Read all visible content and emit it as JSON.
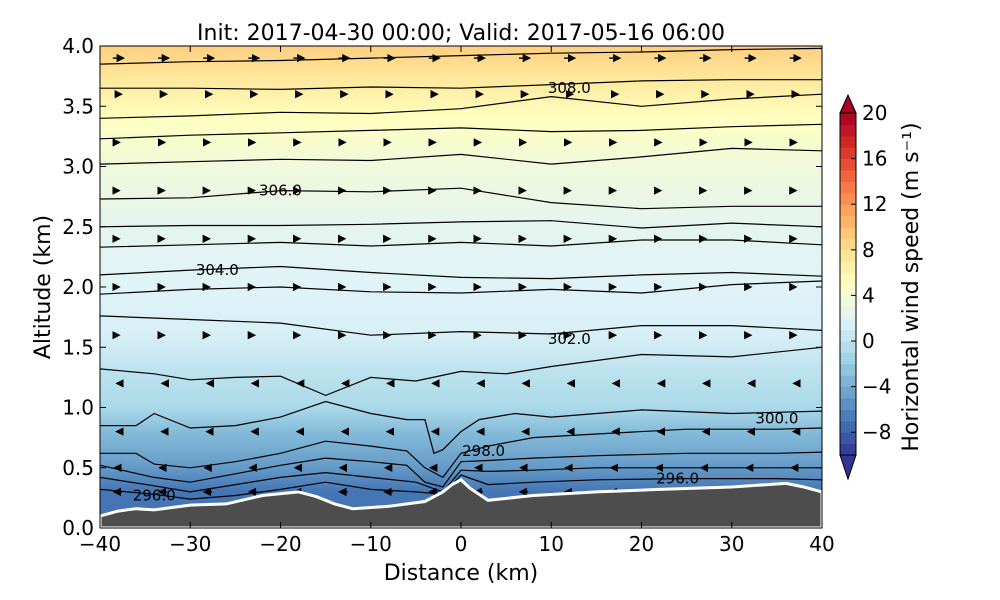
{
  "chart_data": {
    "type": "heatmap",
    "title": "Init: 2017-04-30 00:00; Valid: 2017-05-16 06:00",
    "xlabel": "Distance (km)",
    "ylabel": "Altitude (km)",
    "xlim": [
      -40,
      40
    ],
    "ylim": [
      0.0,
      4.0
    ],
    "x_ticks": [
      "−40",
      "−30",
      "−20",
      "−10",
      "0",
      "10",
      "20",
      "30",
      "40"
    ],
    "y_ticks": [
      "0.0",
      "0.5",
      "1.0",
      "1.5",
      "2.0",
      "2.5",
      "3.0",
      "3.5",
      "4.0"
    ],
    "x_tick_values": [
      -40,
      -30,
      -20,
      -10,
      0,
      10,
      20,
      30,
      40
    ],
    "y_tick_values": [
      0.0,
      0.5,
      1.0,
      1.5,
      2.0,
      2.5,
      3.0,
      3.5,
      4.0
    ],
    "colorbar": {
      "label": "Horizontal wind speed (m s⁻¹)",
      "range": [
        -10,
        20
      ],
      "tick_values": [
        -8,
        -4,
        0,
        4,
        8,
        12,
        16,
        20
      ],
      "tick_labels": [
        "−8",
        "−4",
        "0",
        "4",
        "8",
        "12",
        "16",
        "20"
      ],
      "extend": "both",
      "colormap": "RdYlBu_r",
      "colors": [
        "#313695",
        "#4575b4",
        "#74add1",
        "#abd9e9",
        "#e0f3f8",
        "#ffffbf",
        "#fee090",
        "#fdae61",
        "#f46d43",
        "#d73027",
        "#a50026"
      ]
    },
    "filled_field_profile": [
      {
        "altitude": 0.3,
        "wind_speed": -7
      },
      {
        "altitude": 0.5,
        "wind_speed": -5
      },
      {
        "altitude": 0.8,
        "wind_speed": -3
      },
      {
        "altitude": 1.0,
        "wind_speed": -1
      },
      {
        "altitude": 1.3,
        "wind_speed": 0
      },
      {
        "altitude": 1.6,
        "wind_speed": 1.5
      },
      {
        "altitude": 2.0,
        "wind_speed": 2
      },
      {
        "altitude": 2.5,
        "wind_speed": 2.5
      },
      {
        "altitude": 3.0,
        "wind_speed": 3.5
      },
      {
        "altitude": 3.4,
        "wind_speed": 5
      },
      {
        "altitude": 3.7,
        "wind_speed": 7
      },
      {
        "altitude": 4.0,
        "wind_speed": 9
      }
    ],
    "terrain": {
      "color": "#4d4d4d",
      "x": [
        -40,
        -38,
        -36,
        -34,
        -30,
        -26,
        -22,
        -18,
        -16,
        -14,
        -12,
        -8,
        -4,
        -2,
        -1,
        0,
        1,
        3,
        8,
        15,
        22,
        30,
        36,
        38,
        40
      ],
      "y": [
        0.1,
        0.14,
        0.16,
        0.15,
        0.19,
        0.2,
        0.27,
        0.3,
        0.26,
        0.2,
        0.16,
        0.18,
        0.22,
        0.3,
        0.36,
        0.4,
        0.33,
        0.23,
        0.27,
        0.3,
        0.32,
        0.34,
        0.37,
        0.34,
        0.3
      ]
    },
    "contour_levels": [
      296.0,
      297.0,
      298.0,
      299.0,
      300.0,
      301.0,
      302.0,
      303.0,
      304.0,
      305.0,
      306.0,
      307.0,
      308.0,
      309.0
    ],
    "contour_labels": [
      {
        "text": "296.0",
        "x": -34,
        "y": 0.27
      },
      {
        "text": "298.0",
        "x": 2.5,
        "y": 0.64
      },
      {
        "text": "296.0",
        "x": 24,
        "y": 0.41
      },
      {
        "text": "300.0",
        "x": 35,
        "y": 0.91
      },
      {
        "text": "302.0",
        "x": 12,
        "y": 1.57
      },
      {
        "text": "304.0",
        "x": -27,
        "y": 2.14
      },
      {
        "text": "306.0",
        "x": -20,
        "y": 2.8
      },
      {
        "text": "308.0",
        "x": 12,
        "y": 3.65
      }
    ],
    "contours": [
      {
        "x": [
          -40,
          -34,
          -30,
          -25,
          -20,
          -15,
          -10,
          -5,
          0,
          5,
          10,
          20,
          30,
          40
        ],
        "y": [
          1.32,
          1.28,
          1.23,
          1.25,
          1.26,
          1.1,
          1.25,
          1.22,
          1.3,
          1.28,
          1.34,
          1.44,
          1.42,
          1.5
        ]
      },
      {
        "x": [
          -40,
          -30,
          -20,
          -10,
          0,
          10,
          20,
          30,
          40
        ],
        "y": [
          1.76,
          1.73,
          1.7,
          1.6,
          1.63,
          1.61,
          1.68,
          1.68,
          1.64
        ]
      },
      {
        "x": [
          -40,
          -30,
          -20,
          -10,
          0,
          10,
          20,
          30,
          40
        ],
        "y": [
          1.94,
          1.98,
          2.0,
          1.96,
          1.95,
          1.98,
          1.95,
          2.02,
          2.05
        ]
      },
      {
        "x": [
          -40,
          -30,
          -20,
          -10,
          0,
          10,
          20,
          30,
          40
        ],
        "y": [
          2.1,
          2.14,
          2.17,
          2.12,
          2.08,
          2.07,
          2.1,
          2.12,
          2.09
        ]
      },
      {
        "x": [
          -40,
          -30,
          -20,
          -10,
          0,
          10,
          20,
          30,
          40
        ],
        "y": [
          2.33,
          2.35,
          2.37,
          2.34,
          2.37,
          2.34,
          2.39,
          2.39,
          2.35
        ]
      },
      {
        "x": [
          -40,
          -30,
          -20,
          -10,
          0,
          10,
          20,
          30,
          40
        ],
        "y": [
          2.5,
          2.51,
          2.51,
          2.52,
          2.54,
          2.55,
          2.49,
          2.53,
          2.5
        ]
      },
      {
        "x": [
          -40,
          -30,
          -20,
          -10,
          0,
          10,
          20,
          30,
          40
        ],
        "y": [
          2.73,
          2.74,
          2.8,
          2.79,
          2.82,
          2.7,
          2.65,
          2.67,
          2.67
        ]
      },
      {
        "x": [
          -40,
          -30,
          -20,
          -10,
          0,
          10,
          20,
          30,
          40
        ],
        "y": [
          3.02,
          3.04,
          3.06,
          3.05,
          3.1,
          3.02,
          3.08,
          3.15,
          3.13
        ]
      },
      {
        "x": [
          -40,
          -30,
          -20,
          -10,
          0,
          10,
          20,
          30,
          40
        ],
        "y": [
          3.23,
          3.26,
          3.28,
          3.3,
          3.32,
          3.29,
          3.3,
          3.33,
          3.35
        ]
      },
      {
        "x": [
          -40,
          -30,
          -20,
          -10,
          0,
          10,
          20,
          30,
          40
        ],
        "y": [
          3.4,
          3.42,
          3.45,
          3.44,
          3.48,
          3.58,
          3.5,
          3.56,
          3.6
        ]
      },
      {
        "x": [
          -40,
          -30,
          -20,
          -10,
          0,
          10,
          20,
          30,
          40
        ],
        "y": [
          3.65,
          3.65,
          3.64,
          3.66,
          3.65,
          3.68,
          3.71,
          3.72,
          3.72
        ]
      },
      {
        "x": [
          -40,
          -30,
          -20,
          -10,
          0,
          10,
          20,
          30,
          40
        ],
        "y": [
          3.85,
          3.87,
          3.88,
          3.9,
          3.92,
          3.94,
          3.95,
          3.97,
          3.98
        ]
      },
      {
        "x": [
          -40,
          -36,
          -34,
          -30,
          -25,
          -20,
          -15,
          -10,
          -6,
          -4,
          -3,
          -2,
          0,
          2,
          6,
          10,
          20,
          30,
          40
        ],
        "y": [
          0.85,
          0.85,
          0.95,
          0.83,
          0.85,
          0.92,
          1.05,
          0.95,
          0.9,
          0.9,
          0.62,
          0.65,
          0.8,
          0.9,
          0.95,
          0.92,
          0.98,
          0.95,
          0.97
        ]
      },
      {
        "x": [
          -40,
          -36,
          -34,
          -30,
          -25,
          -20,
          -15,
          -10,
          -6,
          -4,
          -2,
          0,
          3,
          8,
          15,
          25,
          35,
          40
        ],
        "y": [
          0.62,
          0.62,
          0.53,
          0.5,
          0.55,
          0.62,
          0.72,
          0.68,
          0.64,
          0.5,
          0.42,
          0.62,
          0.68,
          0.75,
          0.78,
          0.82,
          0.82,
          0.83
        ]
      },
      {
        "x": [
          -40,
          -34,
          -30,
          -25,
          -20,
          -15,
          -10,
          -6,
          -4,
          -2,
          0,
          3,
          8,
          15,
          25,
          35,
          40
        ],
        "y": [
          0.52,
          0.42,
          0.38,
          0.45,
          0.52,
          0.58,
          0.55,
          0.52,
          0.38,
          0.34,
          0.55,
          0.56,
          0.58,
          0.6,
          0.62,
          0.62,
          0.63
        ]
      },
      {
        "x": [
          -40,
          -34,
          -30,
          -25,
          -20,
          -15,
          -10,
          -5,
          -2,
          0,
          3,
          8,
          15,
          25,
          35,
          40
        ],
        "y": [
          0.42,
          0.35,
          0.3,
          0.36,
          0.42,
          0.46,
          0.42,
          0.38,
          0.3,
          0.48,
          0.47,
          0.48,
          0.5,
          0.5,
          0.5,
          0.5
        ]
      },
      {
        "x": [
          -40,
          -34,
          -30,
          -25,
          -20,
          -15,
          -10,
          -5,
          -2,
          0,
          3,
          8,
          15,
          25,
          35,
          40
        ],
        "y": [
          0.32,
          0.28,
          0.24,
          0.27,
          0.32,
          0.38,
          0.32,
          0.3,
          0.28,
          0.44,
          0.36,
          0.38,
          0.4,
          0.41,
          0.41,
          0.4
        ]
      }
    ],
    "wind_vectors": {
      "rows_altitude": [
        0.3,
        0.5,
        0.8,
        1.2,
        1.6,
        2.0,
        2.4,
        2.8,
        3.2,
        3.6,
        3.9
      ],
      "rows_speed": [
        -6,
        -5,
        -2,
        -1,
        0,
        0.5,
        0.5,
        1,
        2,
        5,
        8
      ],
      "columns_distance": [
        -38,
        -33,
        -28,
        -23,
        -18,
        -13,
        -8,
        -3,
        2,
        7,
        12,
        17,
        22,
        27,
        32,
        37
      ]
    }
  }
}
